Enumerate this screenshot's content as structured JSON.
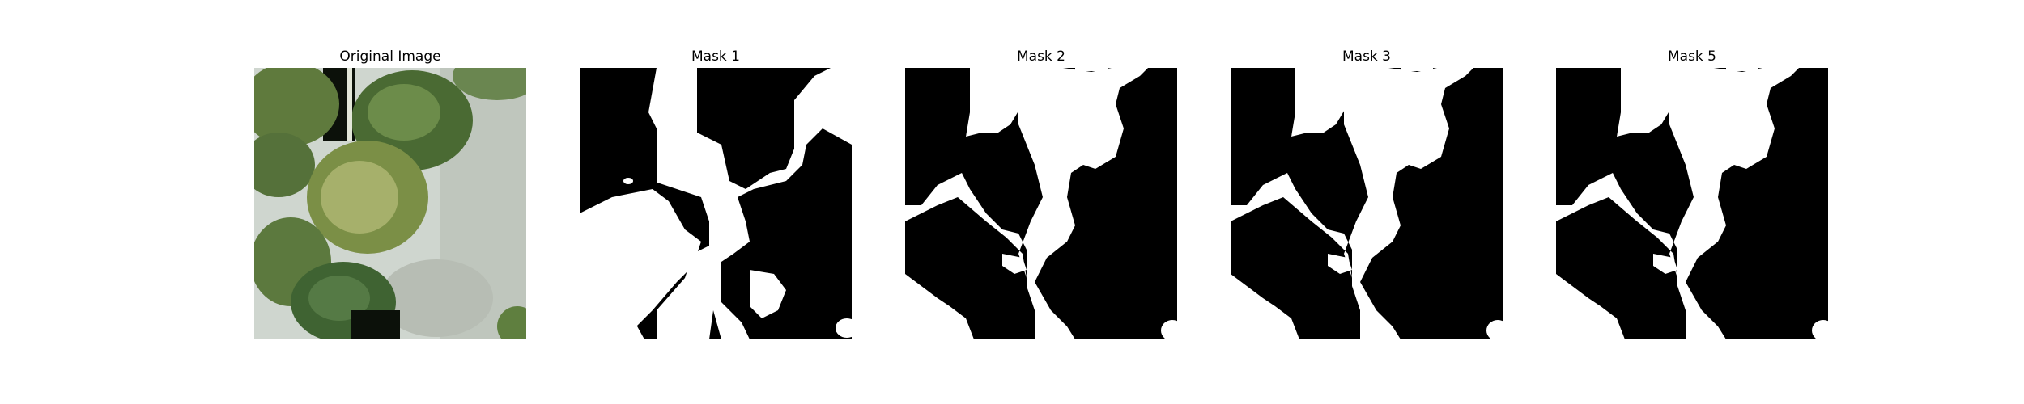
{
  "panels": [
    {
      "title": "Original Image"
    },
    {
      "title": "Mask 1"
    },
    {
      "title": "Mask 2"
    },
    {
      "title": "Mask 3"
    },
    {
      "title": "Mask 5"
    }
  ],
  "colors": {
    "mask_foreground": "#ffffff",
    "mask_background": "#000000",
    "leaf_dark": "#3f5a2c",
    "leaf_mid": "#6e8a48",
    "leaf_light": "#a9b77a",
    "backdrop": "#cfd6cf"
  }
}
